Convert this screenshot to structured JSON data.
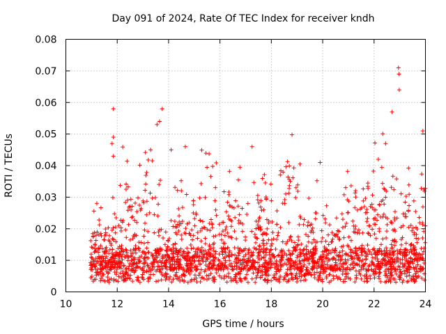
{
  "chart_data": {
    "type": "scatter",
    "title": "Day 091 of 2024, Rate Of TEC Index for receiver kndh",
    "xlabel": "GPS time / hours",
    "ylabel": "ROTI / TECUs",
    "xlim": [
      10,
      24
    ],
    "ylim": [
      0,
      0.08
    ],
    "x_ticks": [
      "10",
      "12",
      "14",
      "16",
      "18",
      "20",
      "22",
      "24"
    ],
    "y_ticks": [
      "0",
      "0.01",
      "0.02",
      "0.03",
      "0.04",
      "0.05",
      "0.06",
      "0.07",
      "0.08"
    ],
    "grid": true,
    "marker": "+",
    "series": [
      {
        "name": "ROTI",
        "color": "#ff0000",
        "data_range_x": [
          10.95,
          24.0
        ],
        "baseline": 0.007,
        "notable_points": [
          {
            "x": 11.85,
            "y": 0.058
          },
          {
            "x": 11.85,
            "y": 0.049
          },
          {
            "x": 11.8,
            "y": 0.047
          },
          {
            "x": 11.85,
            "y": 0.043
          },
          {
            "x": 13.55,
            "y": 0.053
          },
          {
            "x": 13.75,
            "y": 0.058
          },
          {
            "x": 13.65,
            "y": 0.054
          },
          {
            "x": 13.3,
            "y": 0.045
          },
          {
            "x": 14.1,
            "y": 0.045
          },
          {
            "x": 14.65,
            "y": 0.046
          },
          {
            "x": 17.25,
            "y": 0.046
          },
          {
            "x": 19.9,
            "y": 0.041
          },
          {
            "x": 22.45,
            "y": 0.047
          },
          {
            "x": 22.7,
            "y": 0.057
          },
          {
            "x": 22.95,
            "y": 0.071
          },
          {
            "x": 22.97,
            "y": 0.069
          },
          {
            "x": 22.98,
            "y": 0.064
          },
          {
            "x": 23.9,
            "y": 0.051
          }
        ]
      }
    ]
  }
}
